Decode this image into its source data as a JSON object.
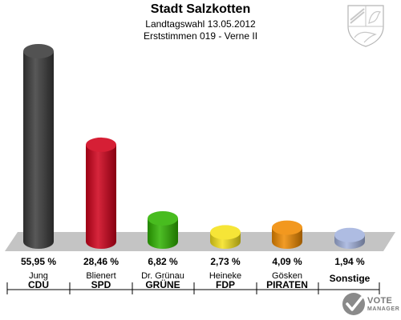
{
  "header": {
    "title": "Stadt Salzkotten",
    "subtitle_1": "Landtagswahl 13.05.2012",
    "subtitle_2": "Erststimmen 019 - Verne II"
  },
  "chart_data": {
    "type": "bar",
    "title": "Stadt Salzkotten",
    "subtitle": [
      "Landtagswahl 13.05.2012",
      "Erststimmen 019 - Verne II"
    ],
    "categories": [
      "CDU",
      "SPD",
      "GRÜNE",
      "FDP",
      "PIRATEN",
      "Sonstige"
    ],
    "candidates": [
      "Jung",
      "Blienert",
      "Dr. Grünau",
      "Heineke",
      "Gösken",
      ""
    ],
    "values": [
      55.95,
      28.46,
      6.82,
      2.73,
      4.09,
      1.94
    ],
    "value_labels": [
      "55,95 %",
      "28,46 %",
      "6,82 %",
      "2,73 %",
      "4,09 %",
      "1,94 %"
    ],
    "colors": [
      "#3a3a3a",
      "#d0001a",
      "#2fb300",
      "#f5e21c",
      "#f08a00",
      "#a3b3de"
    ],
    "xlabel": "",
    "ylabel": "",
    "grid": false,
    "legend": "none"
  },
  "branding": {
    "crest_icon": "nrw-coat-of-arms-icon",
    "logo_icon": "vote-manager-logo-icon",
    "logo_line1": "VOTE",
    "logo_line2": "MANAGER"
  }
}
